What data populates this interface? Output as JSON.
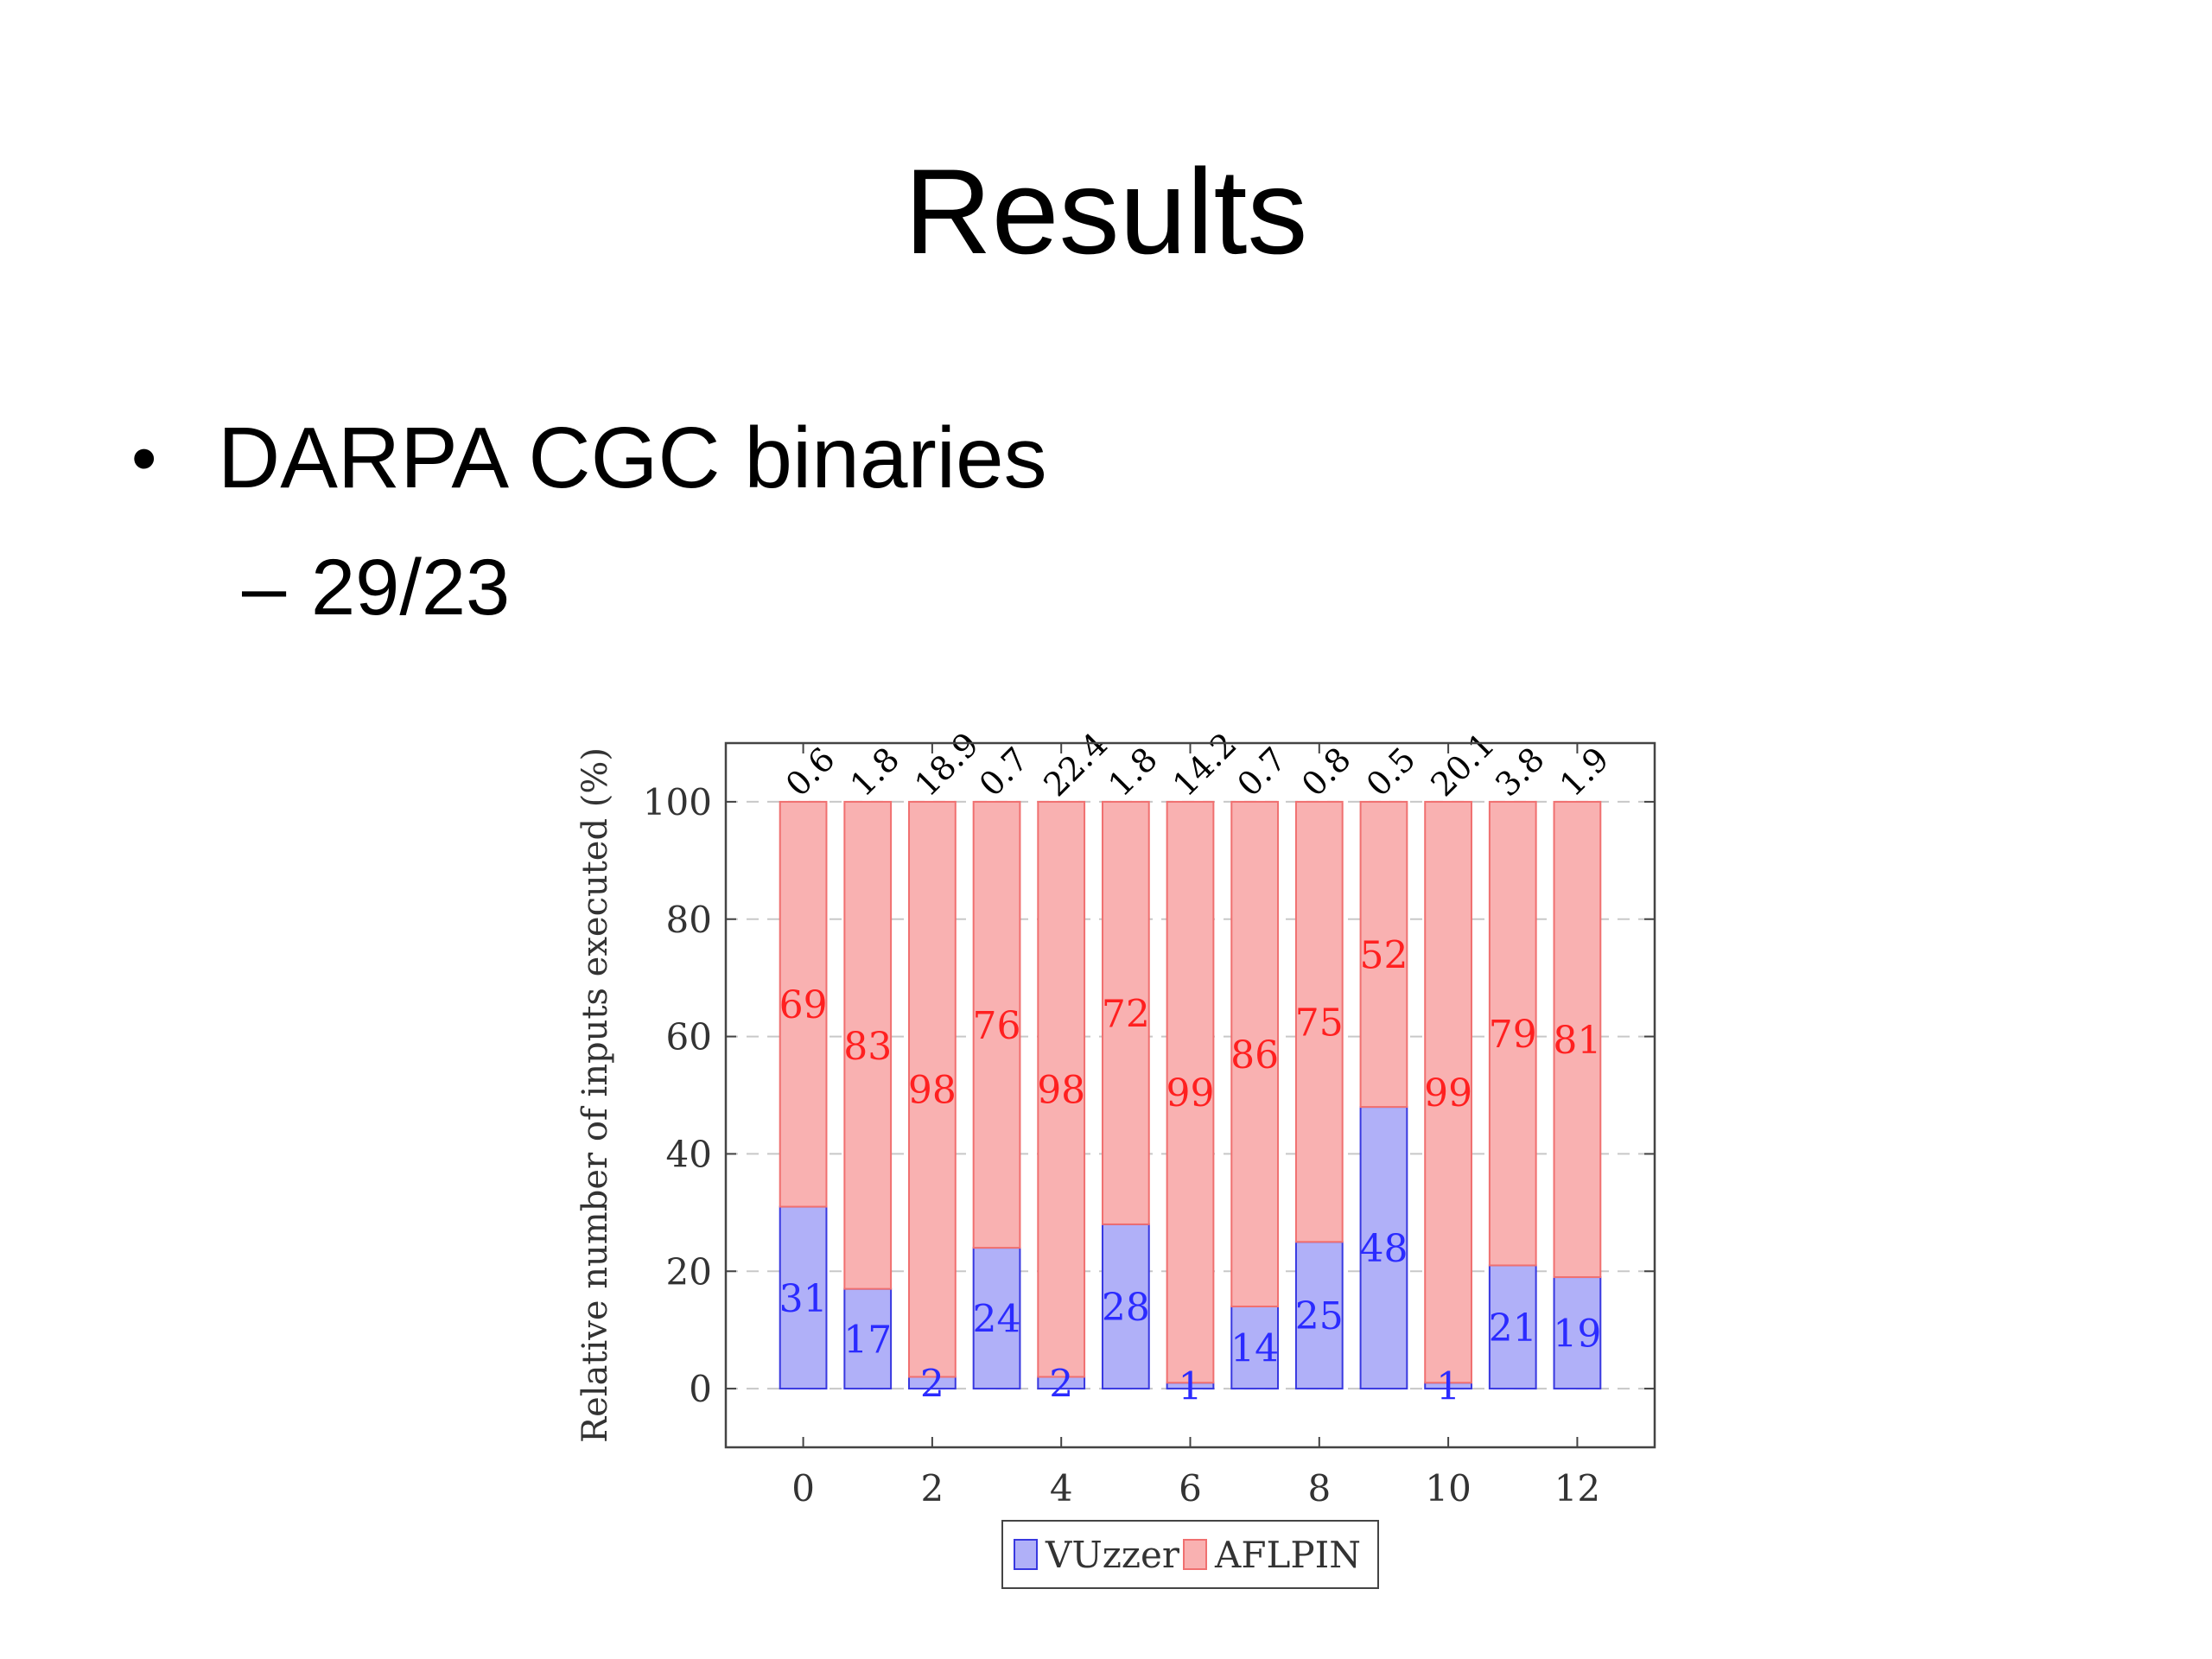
{
  "slide": {
    "title": "Results",
    "bullet": {
      "marker": "•",
      "text": "DARPA CGC binaries"
    },
    "subbullet": {
      "marker": "–",
      "text": "29/23"
    }
  },
  "colors": {
    "vuzzer_fill": "#b0b0f8",
    "vuzzer_stroke": "#3838e0",
    "vuzzer_label": "#2b2bff",
    "aflpin_fill": "#f9b1b1",
    "aflpin_stroke": "#f07070",
    "aflpin_label": "#ff2020",
    "grid": "#c8c8c8",
    "axis": "#444444",
    "text": "#333333"
  },
  "chart_data": {
    "type": "bar",
    "stacked": true,
    "x": [
      0,
      1,
      2,
      3,
      4,
      5,
      6,
      7,
      8,
      9,
      10,
      11,
      12
    ],
    "x_ticks": [
      0,
      2,
      4,
      6,
      8,
      10,
      12
    ],
    "y_ticks": [
      0,
      20,
      40,
      60,
      80,
      100
    ],
    "xlim": [
      -1.2,
      13.2
    ],
    "ylim": [
      -10,
      110
    ],
    "ylabel": "Relative number of inputs executed (%)",
    "grid": "y-dashed",
    "legend": "bottom-center",
    "series": [
      {
        "name": "VUzzer",
        "values": [
          31,
          17,
          2,
          24,
          2,
          28,
          1,
          14,
          25,
          48,
          1,
          21,
          19
        ]
      },
      {
        "name": "AFLPIN",
        "values": [
          69,
          83,
          98,
          76,
          98,
          72,
          99,
          86,
          75,
          52,
          99,
          79,
          81
        ]
      }
    ],
    "top_labels": [
      "0.6",
      "1.8",
      "18.9",
      "0.7",
      "22.4",
      "1.8",
      "14.2",
      "0.7",
      "0.8",
      "0.5",
      "20.1",
      "3.8",
      "1.9"
    ]
  }
}
